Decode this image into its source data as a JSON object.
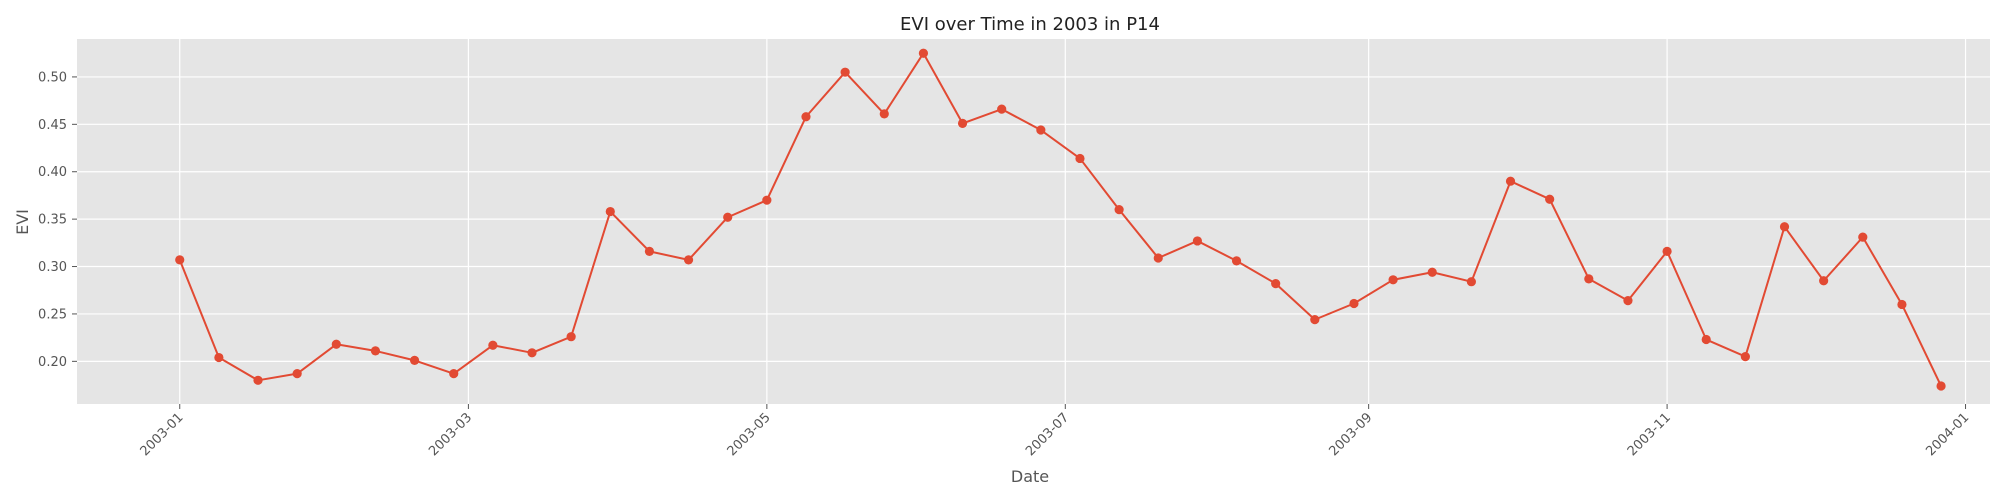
{
  "chart_data": {
    "type": "line",
    "title": "EVI over Time in 2003 in P14",
    "xlabel": "Date",
    "ylabel": "EVI",
    "xlim": [
      "2002-12-11",
      "2004-01-06"
    ],
    "ylim": [
      0.155,
      0.54
    ],
    "xticks": [
      {
        "date": "2003-01-01",
        "label": "2003-01"
      },
      {
        "date": "2003-03-01",
        "label": "2003-03"
      },
      {
        "date": "2003-05-01",
        "label": "2003-05"
      },
      {
        "date": "2003-07-01",
        "label": "2003-07"
      },
      {
        "date": "2003-09-01",
        "label": "2003-09"
      },
      {
        "date": "2003-11-01",
        "label": "2003-11"
      },
      {
        "date": "2004-01-01",
        "label": "2004-01"
      }
    ],
    "yticks": [
      {
        "value": 0.2,
        "label": "0.20"
      },
      {
        "value": 0.25,
        "label": "0.25"
      },
      {
        "value": 0.3,
        "label": "0.30"
      },
      {
        "value": 0.35,
        "label": "0.35"
      },
      {
        "value": 0.4,
        "label": "0.40"
      },
      {
        "value": 0.45,
        "label": "0.45"
      },
      {
        "value": 0.5,
        "label": "0.50"
      }
    ],
    "grid": true,
    "series": [
      {
        "color": "#e24a33",
        "x": [
          "2003-01-01",
          "2003-01-09",
          "2003-01-17",
          "2003-01-25",
          "2003-02-02",
          "2003-02-10",
          "2003-02-18",
          "2003-02-26",
          "2003-03-06",
          "2003-03-14",
          "2003-03-22",
          "2003-03-30",
          "2003-04-07",
          "2003-04-15",
          "2003-04-23",
          "2003-05-01",
          "2003-05-09",
          "2003-05-17",
          "2003-05-25",
          "2003-06-02",
          "2003-06-10",
          "2003-06-18",
          "2003-06-26",
          "2003-07-04",
          "2003-07-12",
          "2003-07-20",
          "2003-07-28",
          "2003-08-05",
          "2003-08-13",
          "2003-08-21",
          "2003-08-29",
          "2003-09-06",
          "2003-09-14",
          "2003-09-22",
          "2003-09-30",
          "2003-10-08",
          "2003-10-16",
          "2003-10-24",
          "2003-11-01",
          "2003-11-09",
          "2003-11-17",
          "2003-11-25",
          "2003-12-03",
          "2003-12-11",
          "2003-12-19",
          "2003-12-27"
        ],
        "y": [
          0.307,
          0.204,
          0.18,
          0.187,
          0.218,
          0.211,
          0.201,
          0.187,
          0.217,
          0.209,
          0.226,
          0.358,
          0.316,
          0.307,
          0.352,
          0.37,
          0.458,
          0.505,
          0.461,
          0.525,
          0.451,
          0.466,
          0.444,
          0.414,
          0.36,
          0.309,
          0.327,
          0.306,
          0.282,
          0.244,
          0.261,
          0.286,
          0.294,
          0.284,
          0.39,
          0.371,
          0.287,
          0.264,
          0.316,
          0.223,
          0.205,
          0.342,
          0.285,
          0.331,
          0.26,
          0.174
        ]
      }
    ]
  },
  "colors": {
    "plot_background": "#e5e5e5",
    "grid": "#ffffff",
    "line": "#e24a33"
  }
}
